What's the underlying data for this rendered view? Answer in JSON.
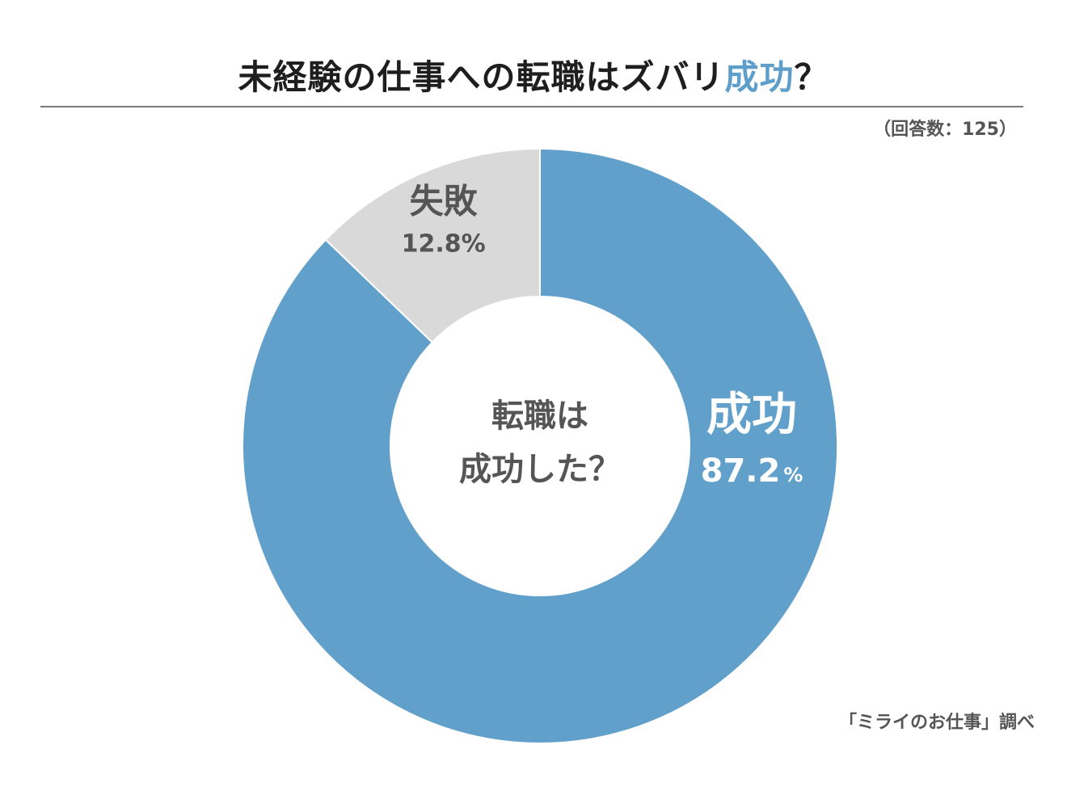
{
  "title": {
    "main": "未経験の仕事への転職はズバリ",
    "accent": "成功",
    "tail": "？"
  },
  "respondents_note": "（回答数：125）",
  "source_note": "「ミライのお仕事」調べ",
  "center_label": {
    "line1": "転職は",
    "line2": "成功した？"
  },
  "chart_data": {
    "type": "pie",
    "variant": "donut",
    "slices": [
      {
        "label": "成功",
        "value": 87.2,
        "value_text": "87.2",
        "unit": "%",
        "color": "#62a0cc",
        "label_color": "#ffffff"
      },
      {
        "label": "失敗",
        "value": 12.8,
        "value_text": "12.8%",
        "unit": "",
        "color": "#d9d9d9",
        "label_color": "#555555"
      }
    ],
    "legend": "none"
  }
}
